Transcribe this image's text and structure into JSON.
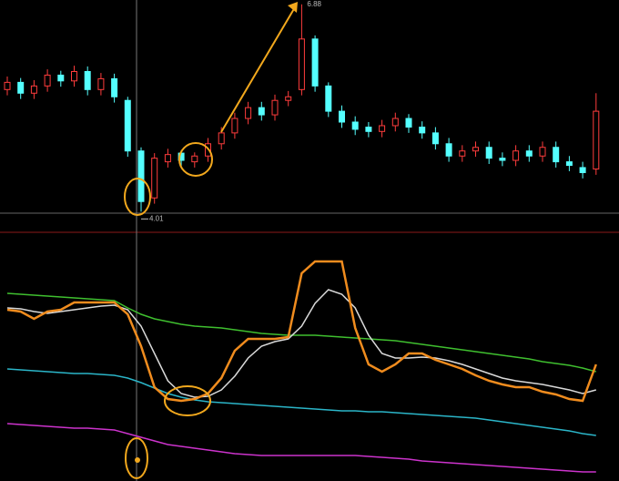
{
  "chart_data": [
    {
      "type": "candlestick",
      "open": [
        5.7,
        5.8,
        5.65,
        5.75,
        5.9,
        5.82,
        5.95,
        5.7,
        5.85,
        5.55,
        4.85,
        4.2,
        4.7,
        4.82,
        4.7,
        4.78,
        4.95,
        5.1,
        5.3,
        5.45,
        5.35,
        5.55,
        5.7,
        6.4,
        5.75,
        5.4,
        5.25,
        5.18,
        5.12,
        5.2,
        5.3,
        5.18,
        5.1,
        4.95,
        4.78,
        4.85,
        4.9,
        4.75,
        4.72,
        4.85,
        4.78,
        4.9,
        4.7,
        4.62,
        4.6
      ],
      "high": [
        5.88,
        5.86,
        5.83,
        5.98,
        5.96,
        6.03,
        6.02,
        5.93,
        5.92,
        5.6,
        4.9,
        4.82,
        4.88,
        4.86,
        4.83,
        5.03,
        5.18,
        5.38,
        5.53,
        5.53,
        5.63,
        5.68,
        6.88,
        6.45,
        5.8,
        5.48,
        5.33,
        5.25,
        5.28,
        5.38,
        5.36,
        5.26,
        5.18,
        5.03,
        4.93,
        4.98,
        4.98,
        4.83,
        4.93,
        4.93,
        4.98,
        4.98,
        4.78,
        4.7,
        5.65
      ],
      "low": [
        5.62,
        5.57,
        5.57,
        5.67,
        5.74,
        5.74,
        5.62,
        5.62,
        5.52,
        4.77,
        4.01,
        4.12,
        4.62,
        4.64,
        4.62,
        4.7,
        4.87,
        5.02,
        5.22,
        5.27,
        5.27,
        5.47,
        5.62,
        5.67,
        5.32,
        5.17,
        5.07,
        5.04,
        5.04,
        5.12,
        5.1,
        5.02,
        4.87,
        4.7,
        4.7,
        4.77,
        4.67,
        4.64,
        4.64,
        4.7,
        4.7,
        4.62,
        4.57,
        4.47,
        4.52
      ],
      "close": [
        5.8,
        5.65,
        5.75,
        5.9,
        5.82,
        5.95,
        5.7,
        5.85,
        5.6,
        4.85,
        4.15,
        4.75,
        4.8,
        4.72,
        4.78,
        4.95,
        5.1,
        5.3,
        5.45,
        5.35,
        5.55,
        5.6,
        6.4,
        5.75,
        5.4,
        5.25,
        5.15,
        5.12,
        5.2,
        5.3,
        5.18,
        5.1,
        4.95,
        4.78,
        4.85,
        4.9,
        4.75,
        4.72,
        4.85,
        4.78,
        4.9,
        4.7,
        4.65,
        4.55,
        5.4
      ],
      "up_color": "#ff3c3c",
      "down_color": "#54ffff",
      "ylim": [
        3.85,
        6.94
      ],
      "high_label": {
        "value": 6.88,
        "label": "6.88"
      },
      "low_label": {
        "value": 4.01,
        "label": "4.01"
      }
    },
    {
      "type": "line",
      "ylim": [
        0,
        270
      ],
      "series": [
        {
          "color": "#cc33cc",
          "values": [
            63,
            62,
            61,
            60,
            59,
            58,
            58,
            57,
            56,
            52,
            48,
            44,
            40,
            38,
            36,
            34,
            32,
            30,
            29,
            28,
            28,
            28,
            28,
            28,
            28,
            28,
            28,
            27,
            26,
            25,
            24,
            22,
            21,
            20,
            19,
            18,
            17,
            16,
            15,
            14,
            13,
            12,
            11,
            10,
            10
          ]
        },
        {
          "color": "#2bb5c8",
          "values": [
            123,
            122,
            121,
            120,
            119,
            118,
            118,
            117,
            116,
            113,
            108,
            102,
            96,
            92,
            89,
            87,
            86,
            85,
            84,
            83,
            82,
            81,
            80,
            79,
            78,
            77,
            77,
            76,
            76,
            75,
            74,
            73,
            72,
            71,
            70,
            69,
            67,
            65,
            63,
            61,
            59,
            57,
            55,
            52,
            50
          ]
        },
        {
          "color": "#3fbf2f",
          "values": [
            206,
            205,
            204,
            203,
            202,
            201,
            200,
            199,
            198,
            190,
            183,
            178,
            175,
            172,
            170,
            169,
            168,
            166,
            164,
            162,
            161,
            160,
            160,
            160,
            159,
            158,
            157,
            156,
            155,
            154,
            152,
            150,
            148,
            146,
            144,
            142,
            140,
            138,
            136,
            134,
            131,
            129,
            127,
            124,
            120
          ]
        },
        {
          "color": "#d9d9d9",
          "values": [
            190,
            189,
            186,
            184,
            186,
            188,
            190,
            192,
            193,
            188,
            170,
            140,
            110,
            96,
            92,
            93,
            100,
            115,
            135,
            148,
            153,
            156,
            170,
            195,
            210,
            205,
            190,
            160,
            140,
            135,
            135,
            136,
            135,
            132,
            128,
            123,
            118,
            113,
            110,
            108,
            106,
            103,
            100,
            96,
            100
          ]
        },
        {
          "color": "#f08c1e",
          "values": [
            188,
            186,
            178,
            186,
            188,
            196,
            196,
            196,
            196,
            183,
            148,
            103,
            90,
            88,
            90,
            96,
            113,
            143,
            156,
            156,
            156,
            158,
            228,
            241,
            241,
            241,
            168,
            128,
            120,
            128,
            140,
            140,
            133,
            128,
            123,
            116,
            110,
            106,
            103,
            103,
            98,
            95,
            90,
            88,
            128
          ]
        }
      ]
    }
  ]
}
